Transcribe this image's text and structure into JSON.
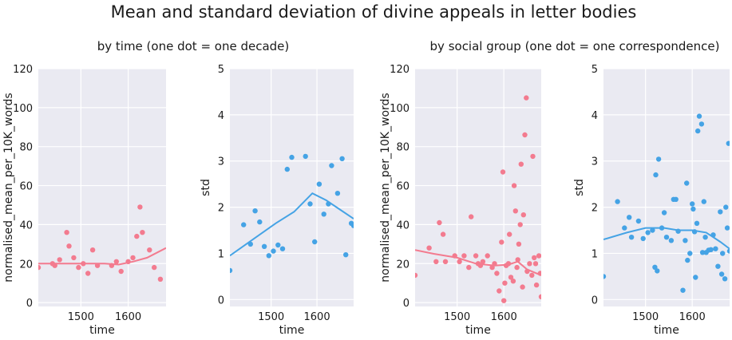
{
  "title": "Mean and standard deviation of divine appeals in letter bodies",
  "subtitles": {
    "left": "by time (one dot = one decade)",
    "right": "by social group (one dot = one correspondence)"
  },
  "colors": {
    "background": "#eaeaf2",
    "grid": "#ffffff",
    "mean": "#f37b8f",
    "std": "#45a3e5"
  },
  "chart_data": [
    {
      "type": "scatter",
      "group": "by time (one dot = one decade)",
      "title": "",
      "xlabel": "time",
      "ylabel": "normalised_mean_per_10K_words",
      "xlim": [
        1410,
        1680
      ],
      "ylim": [
        -2,
        120
      ],
      "xticks": [
        1500,
        1600
      ],
      "yticks": [
        0,
        20,
        40,
        60,
        80,
        100,
        120
      ],
      "color_key": "mean",
      "points": [
        [
          1410,
          18
        ],
        [
          1440,
          20
        ],
        [
          1445,
          19
        ],
        [
          1455,
          22
        ],
        [
          1470,
          36
        ],
        [
          1475,
          29
        ],
        [
          1485,
          23
        ],
        [
          1495,
          18
        ],
        [
          1505,
          20
        ],
        [
          1515,
          15
        ],
        [
          1525,
          27
        ],
        [
          1535,
          19
        ],
        [
          1565,
          19
        ],
        [
          1575,
          21
        ],
        [
          1585,
          16
        ],
        [
          1600,
          21
        ],
        [
          1610,
          23
        ],
        [
          1618,
          34
        ],
        [
          1625,
          49
        ],
        [
          1630,
          36
        ],
        [
          1645,
          27
        ],
        [
          1655,
          18
        ],
        [
          1668,
          12
        ]
      ],
      "trend": [
        [
          1410,
          20
        ],
        [
          1450,
          20
        ],
        [
          1500,
          20
        ],
        [
          1550,
          20
        ],
        [
          1580,
          19.5
        ],
        [
          1610,
          21
        ],
        [
          1640,
          23
        ],
        [
          1680,
          28
        ]
      ]
    },
    {
      "type": "scatter",
      "group": "by time (one dot = one decade)",
      "title": "",
      "xlabel": "time",
      "ylabel": "std",
      "xlim": [
        1410,
        1680
      ],
      "ylim": [
        -0.15,
        5
      ],
      "xticks": [
        1500,
        1600
      ],
      "yticks": [
        0,
        1,
        2,
        3,
        4,
        5
      ],
      "color_key": "std",
      "points": [
        [
          1410,
          0.63
        ],
        [
          1440,
          1.62
        ],
        [
          1455,
          1.2
        ],
        [
          1465,
          1.92
        ],
        [
          1475,
          1.68
        ],
        [
          1485,
          1.15
        ],
        [
          1495,
          0.95
        ],
        [
          1505,
          1.05
        ],
        [
          1515,
          1.18
        ],
        [
          1525,
          1.1
        ],
        [
          1535,
          2.82
        ],
        [
          1545,
          3.08
        ],
        [
          1575,
          3.1
        ],
        [
          1585,
          2.07
        ],
        [
          1595,
          1.25
        ],
        [
          1605,
          2.5
        ],
        [
          1615,
          1.85
        ],
        [
          1625,
          2.07
        ],
        [
          1632,
          2.9
        ],
        [
          1645,
          2.3
        ],
        [
          1655,
          3.05
        ],
        [
          1663,
          0.97
        ],
        [
          1675,
          1.65
        ],
        [
          1680,
          1.6
        ]
      ],
      "trend": [
        [
          1410,
          0.95
        ],
        [
          1460,
          1.3
        ],
        [
          1510,
          1.65
        ],
        [
          1550,
          1.9
        ],
        [
          1590,
          2.3
        ],
        [
          1620,
          2.15
        ],
        [
          1650,
          1.95
        ],
        [
          1680,
          1.75
        ]
      ]
    },
    {
      "type": "scatter",
      "group": "by social group (one dot = one correspondence)",
      "title": "",
      "xlabel": "time",
      "ylabel": "normalised_mean_per_10K_words",
      "xlim": [
        1410,
        1680
      ],
      "ylim": [
        -2,
        120
      ],
      "xticks": [
        1500,
        1600
      ],
      "yticks": [
        0,
        20,
        40,
        60,
        80,
        100,
        120
      ],
      "color_key": "mean",
      "points": [
        [
          1410,
          14
        ],
        [
          1440,
          28
        ],
        [
          1455,
          21
        ],
        [
          1462,
          41
        ],
        [
          1470,
          35
        ],
        [
          1475,
          21
        ],
        [
          1495,
          24
        ],
        [
          1505,
          21
        ],
        [
          1515,
          24
        ],
        [
          1525,
          18
        ],
        [
          1530,
          44
        ],
        [
          1540,
          24
        ],
        [
          1545,
          20
        ],
        [
          1550,
          19
        ],
        [
          1555,
          21
        ],
        [
          1565,
          24
        ],
        [
          1575,
          18
        ],
        [
          1580,
          20
        ],
        [
          1585,
          15
        ],
        [
          1590,
          6
        ],
        [
          1595,
          31
        ],
        [
          1598,
          67
        ],
        [
          1600,
          1
        ],
        [
          1602,
          10
        ],
        [
          1605,
          19
        ],
        [
          1610,
          20
        ],
        [
          1612,
          35
        ],
        [
          1615,
          13
        ],
        [
          1620,
          11
        ],
        [
          1622,
          60
        ],
        [
          1625,
          47
        ],
        [
          1628,
          18
        ],
        [
          1630,
          22
        ],
        [
          1632,
          30
        ],
        [
          1635,
          40
        ],
        [
          1637,
          71
        ],
        [
          1640,
          8
        ],
        [
          1642,
          45
        ],
        [
          1645,
          86
        ],
        [
          1648,
          105
        ],
        [
          1650,
          16
        ],
        [
          1655,
          20
        ],
        [
          1660,
          14
        ],
        [
          1662,
          75
        ],
        [
          1665,
          23
        ],
        [
          1668,
          20
        ],
        [
          1670,
          9
        ],
        [
          1675,
          24
        ],
        [
          1678,
          15
        ],
        [
          1680,
          3
        ]
      ],
      "trend": [
        [
          1410,
          27
        ],
        [
          1450,
          25
        ],
        [
          1500,
          23
        ],
        [
          1540,
          20
        ],
        [
          1580,
          19
        ],
        [
          1610,
          19.5
        ],
        [
          1630,
          21
        ],
        [
          1650,
          17
        ],
        [
          1680,
          14
        ]
      ]
    },
    {
      "type": "scatter",
      "group": "by social group (one dot = one correspondence)",
      "title": "",
      "xlabel": "time",
      "ylabel": "std",
      "xlim": [
        1410,
        1680
      ],
      "ylim": [
        -0.15,
        5
      ],
      "xticks": [
        1500,
        1600
      ],
      "yticks": [
        0,
        1,
        2,
        3,
        4,
        5
      ],
      "color_key": "std",
      "points": [
        [
          1410,
          0.5
        ],
        [
          1440,
          2.12
        ],
        [
          1455,
          1.55
        ],
        [
          1465,
          1.78
        ],
        [
          1470,
          1.35
        ],
        [
          1485,
          1.7
        ],
        [
          1495,
          1.32
        ],
        [
          1505,
          1.45
        ],
        [
          1515,
          1.5
        ],
        [
          1520,
          0.7
        ],
        [
          1522,
          2.7
        ],
        [
          1525,
          0.62
        ],
        [
          1528,
          3.04
        ],
        [
          1535,
          1.55
        ],
        [
          1540,
          1.88
        ],
        [
          1545,
          1.35
        ],
        [
          1555,
          1.28
        ],
        [
          1560,
          2.17
        ],
        [
          1565,
          2.17
        ],
        [
          1570,
          1.48
        ],
        [
          1580,
          0.2
        ],
        [
          1585,
          1.28
        ],
        [
          1588,
          2.52
        ],
        [
          1590,
          0.85
        ],
        [
          1595,
          1.0
        ],
        [
          1600,
          2.07
        ],
        [
          1602,
          1.96
        ],
        [
          1605,
          1.47
        ],
        [
          1607,
          0.48
        ],
        [
          1610,
          1.65
        ],
        [
          1612,
          3.65
        ],
        [
          1615,
          3.97
        ],
        [
          1620,
          3.8
        ],
        [
          1622,
          1.02
        ],
        [
          1625,
          2.12
        ],
        [
          1628,
          1.35
        ],
        [
          1630,
          1.02
        ],
        [
          1635,
          1.07
        ],
        [
          1640,
          1.08
        ],
        [
          1645,
          1.4
        ],
        [
          1650,
          1.1
        ],
        [
          1655,
          0.72
        ],
        [
          1660,
          1.9
        ],
        [
          1663,
          0.55
        ],
        [
          1665,
          1.0
        ],
        [
          1670,
          0.45
        ],
        [
          1672,
          2.0
        ],
        [
          1675,
          1.55
        ],
        [
          1678,
          3.38
        ],
        [
          1680,
          1.05
        ]
      ],
      "trend": [
        [
          1410,
          1.3
        ],
        [
          1460,
          1.45
        ],
        [
          1500,
          1.55
        ],
        [
          1540,
          1.55
        ],
        [
          1570,
          1.5
        ],
        [
          1600,
          1.5
        ],
        [
          1630,
          1.45
        ],
        [
          1660,
          1.25
        ],
        [
          1680,
          1.1
        ]
      ]
    }
  ]
}
